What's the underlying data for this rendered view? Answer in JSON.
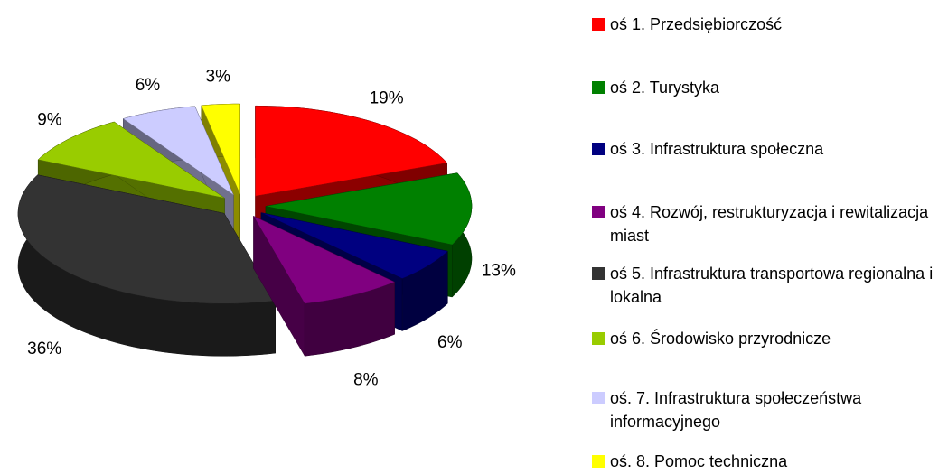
{
  "chart_data": {
    "type": "pie3d",
    "categories": [
      "oś 1. Przedsiębiorczość",
      "oś 2. Turystyka",
      "oś 3. Infrastruktura społeczna",
      "oś 4. Rozwój, restrukturyzacja i rewitalizacja miast",
      "oś 5. Infrastruktura transportowa regionalna i lokalna",
      "oś 6. Środowisko przyrodnicze",
      "oś. 7. Infrastruktura społeczeństwa informacyjnego",
      "oś. 8. Pomoc techniczna"
    ],
    "values": [
      19,
      13,
      6,
      8,
      36,
      9,
      6,
      3
    ],
    "value_labels": [
      "19%",
      "13%",
      "6%",
      "8%",
      "36%",
      "9%",
      "6%",
      "3%"
    ],
    "colors": [
      "#ff0000",
      "#008000",
      "#000080",
      "#800080",
      "#333333",
      "#99cc00",
      "#ccccff",
      "#ffff00"
    ],
    "legend": "right"
  }
}
